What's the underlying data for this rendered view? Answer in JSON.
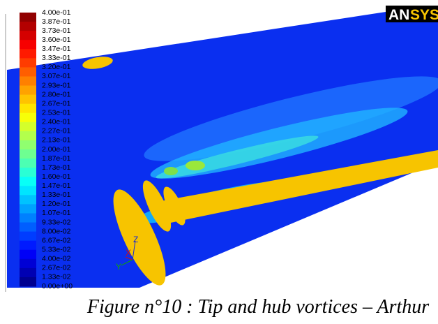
{
  "figure": {
    "logo": [
      "AN",
      "SYS"
    ],
    "colorbar": {
      "labels": [
        "4.00e-01",
        "3.87e-01",
        "3.73e-01",
        "3.60e-01",
        "3.47e-01",
        "3.33e-01",
        "3.20e-01",
        "3.07e-01",
        "2.93e-01",
        "2.80e-01",
        "2.67e-01",
        "2.53e-01",
        "2.40e-01",
        "2.27e-01",
        "2.13e-01",
        "2.00e-01",
        "1.87e-01",
        "1.73e-01",
        "1.60e-01",
        "1.47e-01",
        "1.33e-01",
        "1.20e-01",
        "1.07e-01",
        "9.33e-02",
        "8.00e-02",
        "6.67e-02",
        "5.33e-02",
        "4.00e-02",
        "2.67e-02",
        "1.33e-02",
        "0.00e+00"
      ]
    },
    "axes": {
      "z": "Z",
      "x": "X",
      "y": "Y"
    },
    "caption": "Figure n°10 : Tip and hub vortices – Arthur"
  }
}
